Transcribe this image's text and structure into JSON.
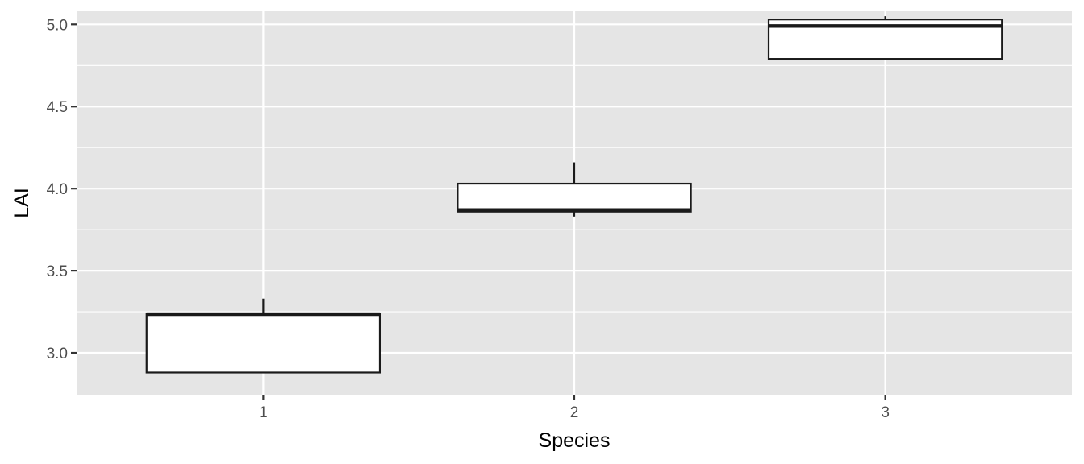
{
  "chart_data": {
    "type": "boxplot",
    "title": "",
    "xlabel": "Species",
    "ylabel": "LAI",
    "categories": [
      "1",
      "2",
      "3"
    ],
    "boxes": [
      {
        "category": "1",
        "min": 2.88,
        "q1": 2.88,
        "median": 3.235,
        "q3": 3.24,
        "max": 3.33
      },
      {
        "category": "2",
        "min": 3.83,
        "q1": 3.86,
        "median": 3.87,
        "q3": 4.03,
        "max": 4.16
      },
      {
        "category": "3",
        "min": 4.79,
        "q1": 4.79,
        "median": 4.99,
        "q3": 5.03,
        "max": 5.05
      }
    ],
    "ylim": [
      2.745,
      5.08
    ],
    "yticks": [
      3.0,
      3.5,
      4.0,
      4.5,
      5.0
    ],
    "ytick_labels": [
      "3.0",
      "3.5",
      "4.0",
      "4.5",
      "5.0"
    ],
    "grid": true,
    "colors": {
      "panel_background": "#e5e5e5",
      "grid_line": "#ffffff",
      "box_fill": "#ffffff",
      "box_stroke": "#1a1a1a",
      "tick_text": "#4d4d4d",
      "axis_title": "#000000"
    }
  }
}
